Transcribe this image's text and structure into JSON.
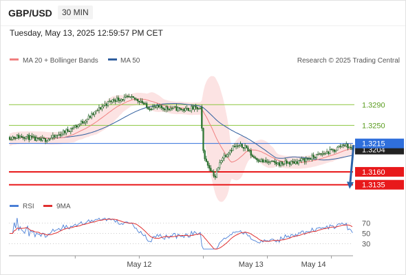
{
  "header": {
    "symbol": "GBP/USD",
    "timeframe": "30 MIN"
  },
  "datetime": "Tuesday, May 13, 2025 12:59:57 PM CET",
  "legend": {
    "ma20_label": "MA 20 + Bollinger Bands",
    "ma50_label": "MA 50",
    "copyright": "Research © 2025 Trading Central",
    "ma20_color": "#f08080",
    "ma50_color": "#2f5e9e"
  },
  "rsi_legend": {
    "rsi_label": "RSI",
    "ma_label": "9MA",
    "rsi_color": "#4a7fd6",
    "ma_color": "#e03030"
  },
  "chart_data": [
    {
      "type": "candlestick",
      "title": "GBP/USD",
      "x_tick_labels": [
        "May 12",
        "May 13",
        "May 14"
      ],
      "y_tick_labels": [
        "1.3290",
        "1.3250"
      ],
      "ylim": [
        1.3112,
        1.3345
      ],
      "last_price": "1.3204",
      "levels": [
        {
          "value": 1.329,
          "label": "1.3290",
          "style": "thin-green",
          "color": "#8cc63f",
          "text_color": "#5a9c1e"
        },
        {
          "value": 1.325,
          "label": "1.3250",
          "style": "thin-green",
          "color": "#8cc63f",
          "text_color": "#5a9c1e"
        },
        {
          "value": 1.3215,
          "label": "1.3215",
          "style": "pivot",
          "color": "#2f6fdc",
          "text_color": "#ffffff"
        },
        {
          "value": 1.316,
          "label": "1.3160",
          "style": "support",
          "color": "#e8191b",
          "text_color": "#ffffff"
        },
        {
          "value": 1.3135,
          "label": "1.3135",
          "style": "support",
          "color": "#e8191b",
          "text_color": "#ffffff"
        }
      ],
      "forecast_arrow": {
        "from": 1.3212,
        "to": 1.3135,
        "color": "#2c62a9"
      },
      "ma_series": [
        "MA 20",
        "Bollinger Bands",
        "MA 50"
      ]
    },
    {
      "type": "line",
      "title": "RSI",
      "y_tick_labels": [
        "70",
        "50",
        "30"
      ],
      "ylim": [
        15,
        85
      ],
      "series": [
        {
          "name": "RSI"
        },
        {
          "name": "9MA"
        }
      ]
    }
  ]
}
